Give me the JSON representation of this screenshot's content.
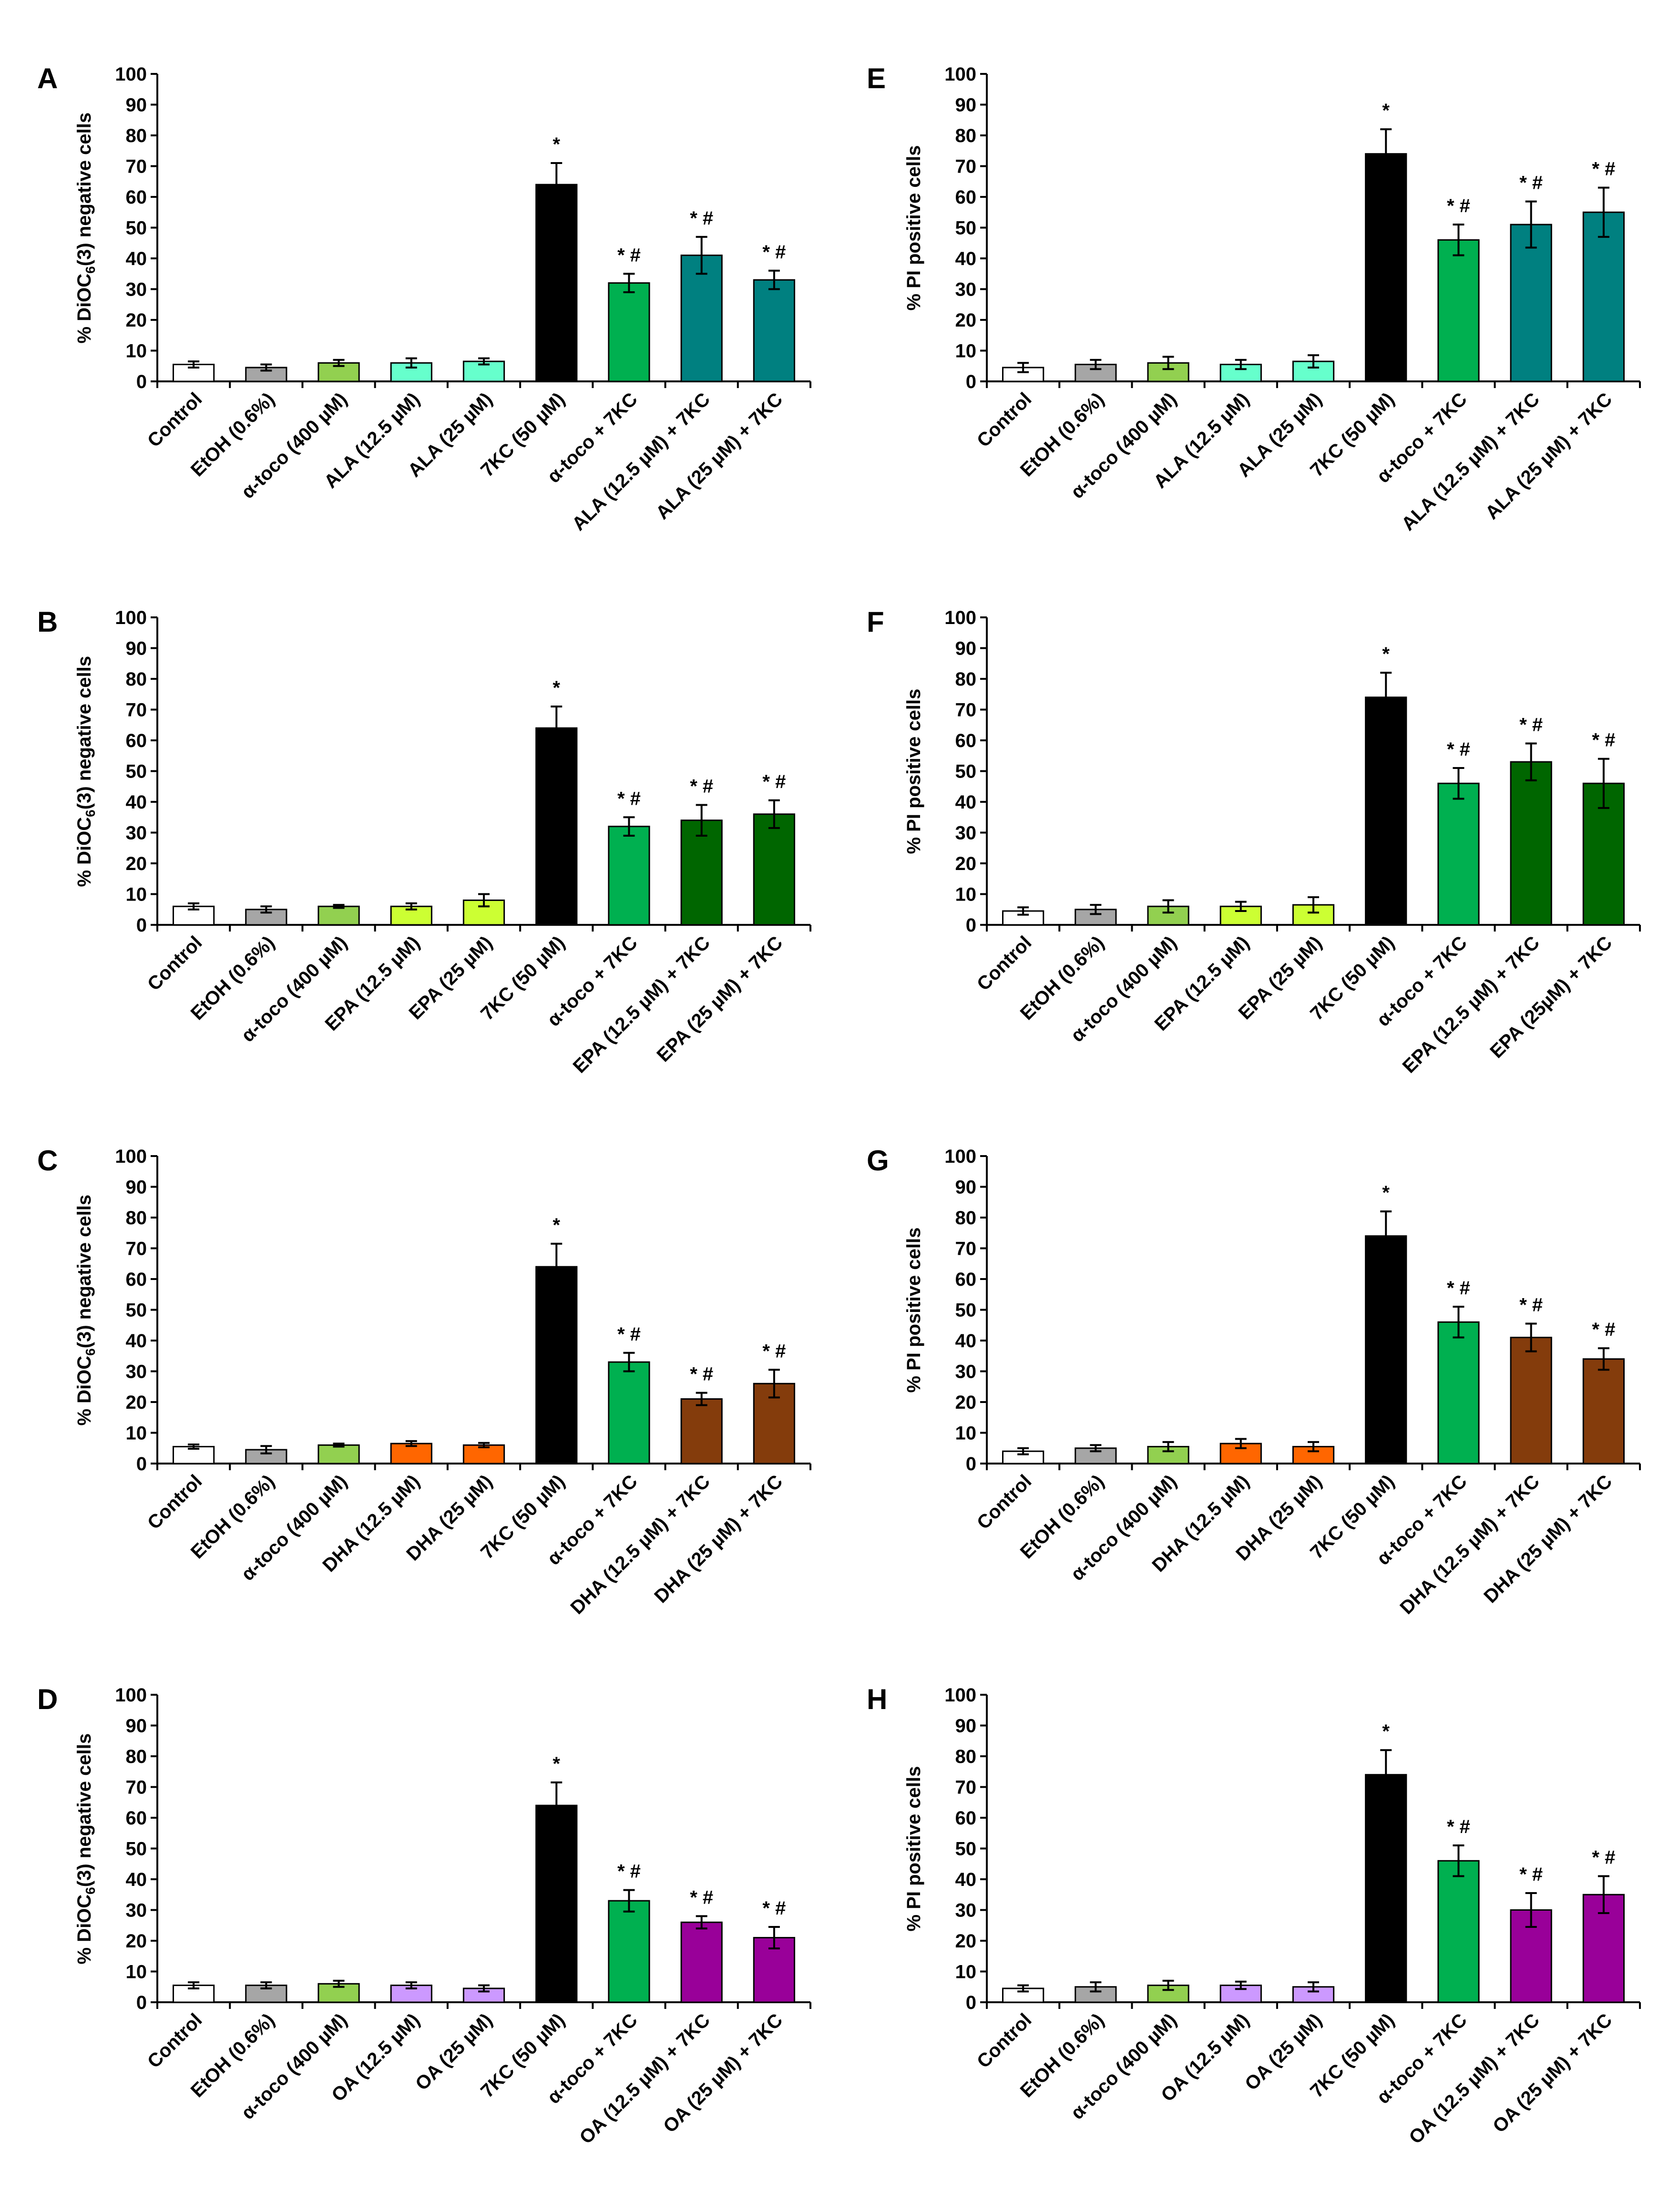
{
  "chart_data": [
    {
      "panel": "A",
      "type": "bar",
      "ylabel": "% DiOC6(3) negative cells",
      "ylim": [
        0,
        100
      ],
      "yticks": [
        0,
        10,
        20,
        30,
        40,
        50,
        60,
        70,
        80,
        90,
        100
      ],
      "categories": [
        "Control",
        "EtOH (0.6%)",
        "α-toco (400 µM)",
        "ALA (12.5 µM)",
        "ALA (25 µM)",
        "7KC (50 µM)",
        "α-toco + 7KC",
        "ALA (12.5 µM) + 7KC",
        "ALA (25 µM) + 7KC"
      ],
      "values": [
        5.5,
        4.5,
        6,
        6,
        6.5,
        64,
        32,
        41,
        33
      ],
      "errors": [
        1,
        1,
        1,
        1.5,
        1,
        7,
        3,
        6,
        3
      ],
      "annotations": [
        "",
        "",
        "",
        "",
        "",
        "*",
        "* #",
        "* #",
        "* #"
      ],
      "colors": [
        "#ffffff",
        "#a6a6a6",
        "#92d050",
        "#66ffcc",
        "#66ffcc",
        "#000000",
        "#00b050",
        "#008080",
        "#008080"
      ]
    },
    {
      "panel": "B",
      "type": "bar",
      "ylabel": "% DiOC6(3) negative cells",
      "ylim": [
        0,
        100
      ],
      "yticks": [
        0,
        10,
        20,
        30,
        40,
        50,
        60,
        70,
        80,
        90,
        100
      ],
      "categories": [
        "Control",
        "EtOH (0.6%)",
        "α-toco (400 µM)",
        "EPA (12.5 µM)",
        "EPA (25 µM)",
        "7KC (50 µM)",
        "α-toco + 7KC",
        "EPA (12.5 µM) + 7KC",
        "EPA (25 µM) + 7KC"
      ],
      "values": [
        6,
        5,
        6,
        6,
        8,
        64,
        32,
        34,
        36
      ],
      "errors": [
        1,
        1,
        0.5,
        1,
        2,
        7,
        3,
        5,
        4.5
      ],
      "annotations": [
        "",
        "",
        "",
        "",
        "",
        "*",
        "* #",
        "* #",
        "* #"
      ],
      "colors": [
        "#ffffff",
        "#a6a6a6",
        "#92d050",
        "#ccff33",
        "#ccff33",
        "#000000",
        "#00b050",
        "#006600",
        "#006600"
      ]
    },
    {
      "panel": "C",
      "type": "bar",
      "ylabel": "% DiOC6(3) negative cells",
      "ylim": [
        0,
        100
      ],
      "yticks": [
        0,
        10,
        20,
        30,
        40,
        50,
        60,
        70,
        80,
        90,
        100
      ],
      "categories": [
        "Control",
        "EtOH (0.6%)",
        "α-toco (400 µM)",
        "DHA (12.5 µM)",
        "DHA (25 µM)",
        "7KC (50 µM)",
        "α-toco + 7KC",
        "DHA (12.5 µM) + 7KC",
        "DHA (25 µM) + 7KC"
      ],
      "values": [
        5.5,
        4.5,
        6,
        6.5,
        6,
        64,
        33,
        21,
        26
      ],
      "errors": [
        0.7,
        1.2,
        0.5,
        0.8,
        0.7,
        7.5,
        3,
        2,
        4.5
      ],
      "annotations": [
        "",
        "",
        "",
        "",
        "",
        "*",
        "* #",
        "* #",
        "* #"
      ],
      "colors": [
        "#ffffff",
        "#a6a6a6",
        "#92d050",
        "#ff6600",
        "#ff6600",
        "#000000",
        "#00b050",
        "#843c0c",
        "#843c0c"
      ]
    },
    {
      "panel": "D",
      "type": "bar",
      "ylabel": "% DiOC6(3) negative cells",
      "ylim": [
        0,
        100
      ],
      "yticks": [
        0,
        10,
        20,
        30,
        40,
        50,
        60,
        70,
        80,
        90,
        100
      ],
      "categories": [
        "Control",
        "EtOH (0.6%)",
        "α-toco (400 µM)",
        "OA (12.5 µM)",
        "OA (25 µM)",
        "7KC (50 µM)",
        "α-toco + 7KC",
        "OA (12.5 µM) + 7KC",
        "OA (25 µM) + 7KC"
      ],
      "values": [
        5.5,
        5.5,
        6,
        5.5,
        4.5,
        64,
        33,
        26,
        21
      ],
      "errors": [
        1,
        1,
        1,
        1,
        1,
        7.5,
        3.5,
        2,
        3.5
      ],
      "annotations": [
        "",
        "",
        "",
        "",
        "",
        "*",
        "* #",
        "* #",
        "* #"
      ],
      "colors": [
        "#ffffff",
        "#a6a6a6",
        "#92d050",
        "#cc99ff",
        "#cc99ff",
        "#000000",
        "#00b050",
        "#990099",
        "#990099"
      ]
    },
    {
      "panel": "E",
      "type": "bar",
      "ylabel": "% PI positive cells",
      "ylim": [
        0,
        100
      ],
      "yticks": [
        0,
        10,
        20,
        30,
        40,
        50,
        60,
        70,
        80,
        90,
        100
      ],
      "categories": [
        "Control",
        "EtOH (0.6%)",
        "α-toco (400 µM)",
        "ALA (12.5 µM)",
        "ALA (25 µM)",
        "7KC (50 µM)",
        "α-toco + 7KC",
        "ALA (12.5 µM) + 7KC",
        "ALA (25 µM) + 7KC"
      ],
      "values": [
        4.5,
        5.5,
        6,
        5.5,
        6.5,
        74,
        46,
        51,
        55
      ],
      "errors": [
        1.5,
        1.5,
        2,
        1.5,
        2,
        8,
        5,
        7.5,
        8
      ],
      "annotations": [
        "",
        "",
        "",
        "",
        "",
        "*",
        "* #",
        "* #",
        "* #"
      ],
      "colors": [
        "#ffffff",
        "#a6a6a6",
        "#92d050",
        "#66ffcc",
        "#66ffcc",
        "#000000",
        "#00b050",
        "#008080",
        "#008080"
      ]
    },
    {
      "panel": "F",
      "type": "bar",
      "ylabel": "% PI positive cells",
      "ylim": [
        0,
        100
      ],
      "yticks": [
        0,
        10,
        20,
        30,
        40,
        50,
        60,
        70,
        80,
        90,
        100
      ],
      "categories": [
        "Control",
        "EtOH (0.6%)",
        "α-toco (400 µM)",
        "EPA (12.5 µM)",
        "EPA (25 µM)",
        "7KC (50 µM)",
        "α-toco + 7KC",
        "EPA (12.5 µM) + 7KC",
        "EPA (25µM) + 7KC"
      ],
      "values": [
        4.5,
        5,
        6,
        6,
        6.5,
        74,
        46,
        53,
        46
      ],
      "errors": [
        1.2,
        1.5,
        2,
        1.5,
        2.5,
        8,
        5,
        6,
        8
      ],
      "annotations": [
        "",
        "",
        "",
        "",
        "",
        "*",
        "* #",
        "* #",
        "* #"
      ],
      "colors": [
        "#ffffff",
        "#a6a6a6",
        "#92d050",
        "#ccff33",
        "#ccff33",
        "#000000",
        "#00b050",
        "#006600",
        "#006600"
      ]
    },
    {
      "panel": "G",
      "type": "bar",
      "ylabel": "% PI positive cells",
      "ylim": [
        0,
        100
      ],
      "yticks": [
        0,
        10,
        20,
        30,
        40,
        50,
        60,
        70,
        80,
        90,
        100
      ],
      "categories": [
        "Control",
        "EtOH (0.6%)",
        "α-toco (400 µM)",
        "DHA (12.5 µM)",
        "DHA (25 µM)",
        "7KC (50 µM)",
        "α-toco + 7KC",
        "DHA (12.5 µM) + 7KC",
        "DHA (25 µM) + 7KC"
      ],
      "values": [
        4,
        5,
        5.5,
        6.5,
        5.5,
        74,
        46,
        41,
        34
      ],
      "errors": [
        1,
        1,
        1.5,
        1.5,
        1.5,
        8,
        5,
        4.5,
        3.5
      ],
      "annotations": [
        "",
        "",
        "",
        "",
        "",
        "*",
        "* #",
        "* #",
        "* #"
      ],
      "colors": [
        "#ffffff",
        "#a6a6a6",
        "#92d050",
        "#ff6600",
        "#ff6600",
        "#000000",
        "#00b050",
        "#843c0c",
        "#843c0c"
      ]
    },
    {
      "panel": "H",
      "type": "bar",
      "ylabel": "% PI positive cells",
      "ylim": [
        0,
        100
      ],
      "yticks": [
        0,
        10,
        20,
        30,
        40,
        50,
        60,
        70,
        80,
        90,
        100
      ],
      "categories": [
        "Control",
        "EtOH (0.6%)",
        "α-toco (400 µM)",
        "OA (12.5 µM)",
        "OA (25 µM)",
        "7KC (50 µM)",
        "α-toco + 7KC",
        "OA (12.5 µM) + 7KC",
        "OA (25 µM) + 7KC"
      ],
      "values": [
        4.5,
        5,
        5.5,
        5.5,
        5,
        74,
        46,
        30,
        35
      ],
      "errors": [
        1,
        1.5,
        1.5,
        1.2,
        1.5,
        8,
        5,
        5.5,
        6
      ],
      "annotations": [
        "",
        "",
        "",
        "",
        "",
        "*",
        "* #",
        "* #",
        "* #"
      ],
      "colors": [
        "#ffffff",
        "#a6a6a6",
        "#92d050",
        "#cc99ff",
        "#cc99ff",
        "#000000",
        "#00b050",
        "#990099",
        "#990099"
      ]
    }
  ]
}
